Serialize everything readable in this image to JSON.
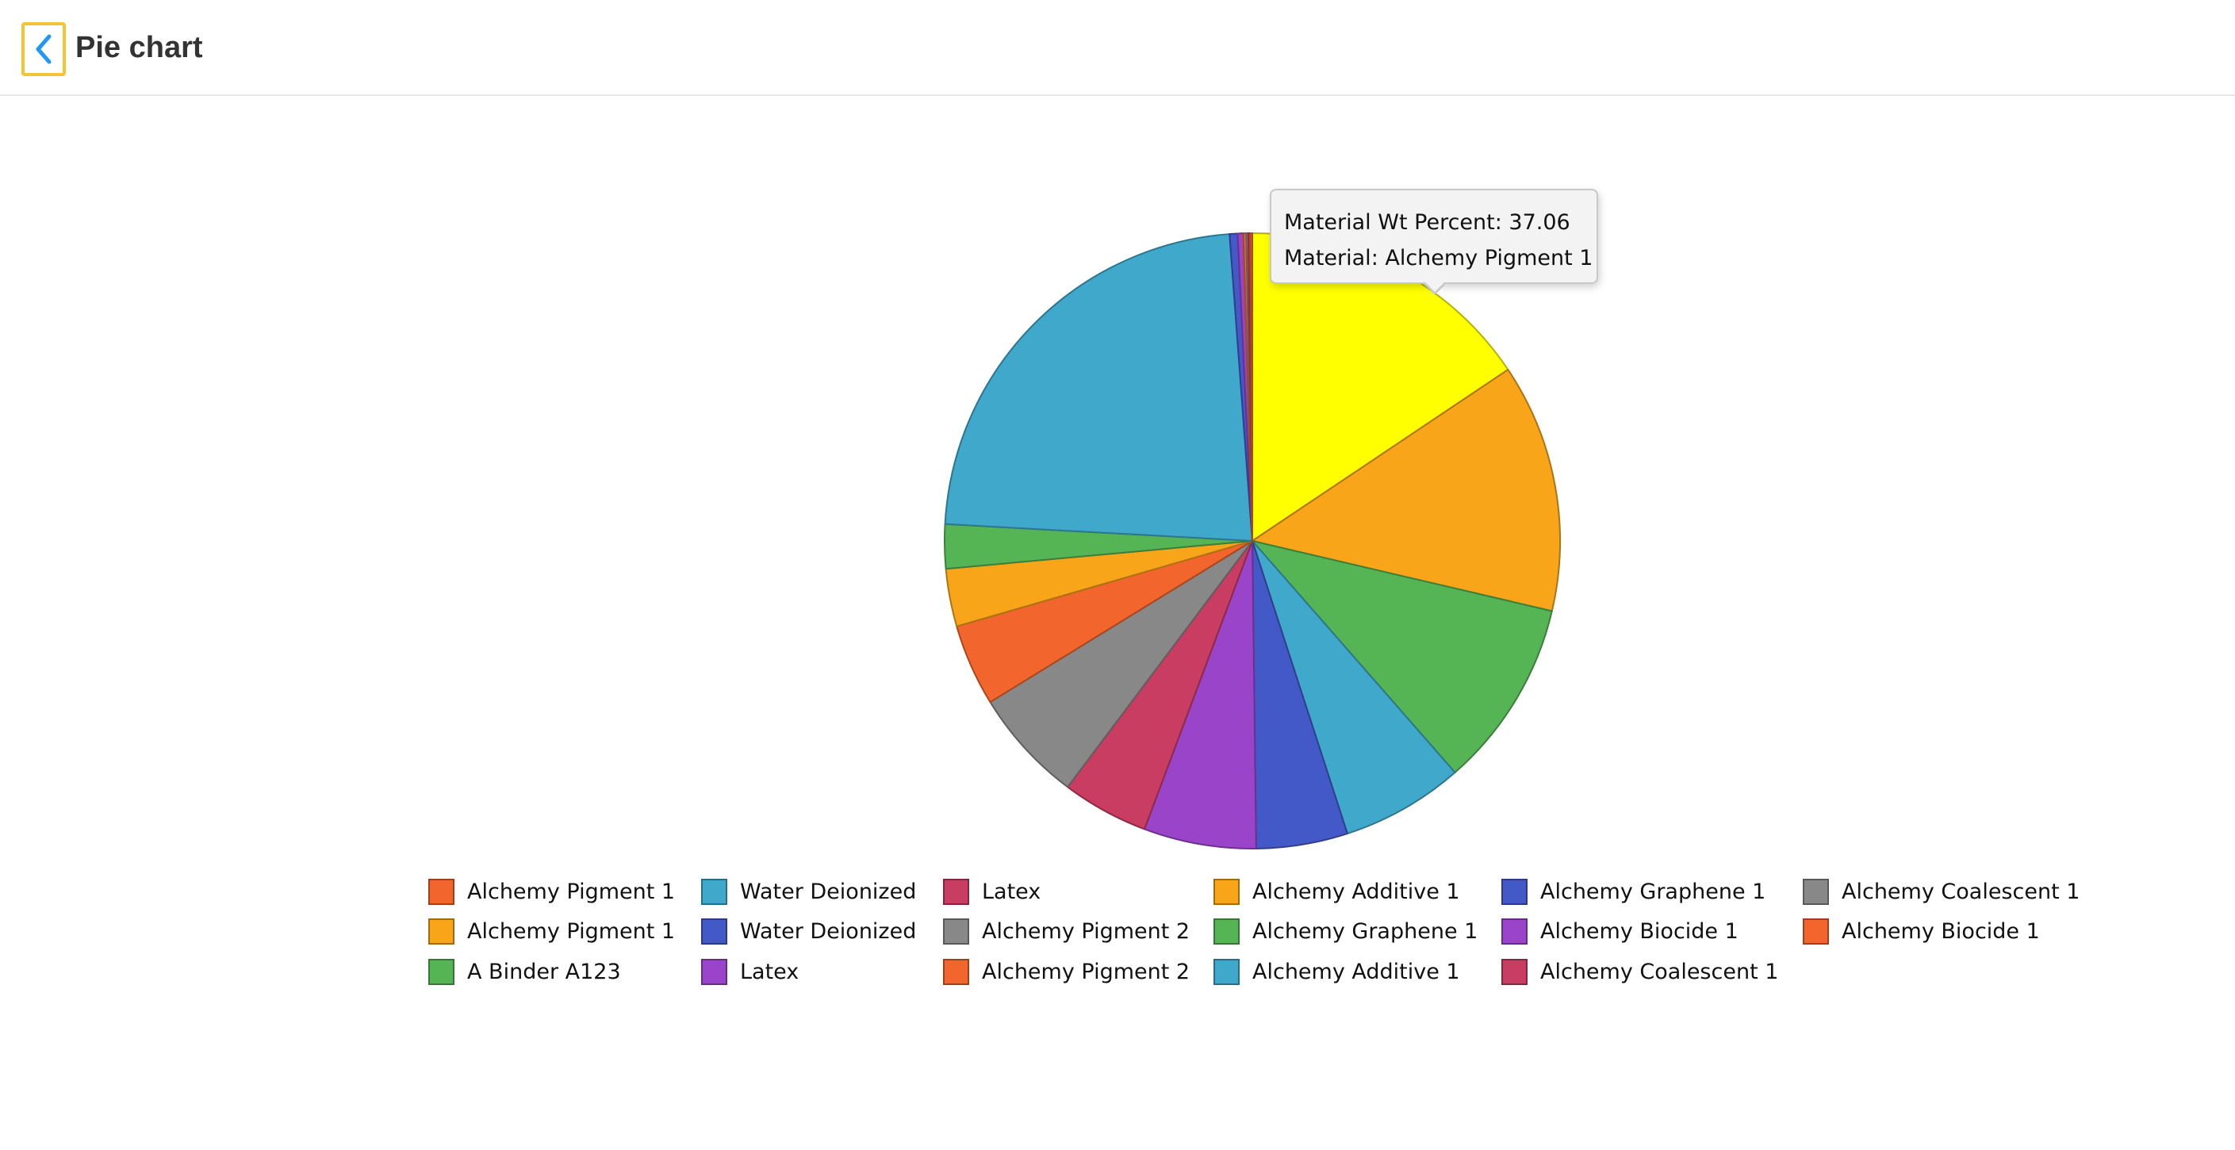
{
  "header": {
    "back_icon": "chevron-left-icon",
    "title": "Pie chart",
    "accent_color": "#2196f3",
    "focus_color": "#f6c431"
  },
  "tooltip": {
    "line1": "Material Wt Percent: 37.06",
    "line2": "Material: Alchemy Pigment 1"
  },
  "chart_data": {
    "type": "pie",
    "title": "",
    "legend_position": "bottom",
    "slices": [
      {
        "label": "Alchemy Pigment 1",
        "value": 37.06,
        "color": "#ffff00"
      },
      {
        "label": "Alchemy Additive 1",
        "value": 31.0,
        "color": "#f9a51a"
      },
      {
        "label": "Alchemy Graphene 1",
        "value": 23.5,
        "color": "#55b555"
      },
      {
        "label": "Alchemy Additive 1",
        "value": 15.3,
        "color": "#40a8cb"
      },
      {
        "label": "Alchemy Graphene 1",
        "value": 11.4,
        "color": "#4459c8"
      },
      {
        "label": "Alchemy Biocide 1",
        "value": 14.0,
        "color": "#9a44c9"
      },
      {
        "label": "Alchemy Coalescent 1",
        "value": 10.8,
        "color": "#c93d63"
      },
      {
        "label": "Alchemy Coalescent 1",
        "value": 14.2,
        "color": "#888888"
      },
      {
        "label": "Alchemy Biocide 1",
        "value": 10.2,
        "color": "#f2652c"
      },
      {
        "label": "Alchemy Pigment 1",
        "value": 7.2,
        "color": "#f9a51a"
      },
      {
        "label": "A Binder A123",
        "value": 5.5,
        "color": "#55b555"
      },
      {
        "label": "Water Deionized",
        "value": 54.5,
        "color": "#40a8cb"
      },
      {
        "label": "Water Deionized",
        "value": 1.0,
        "color": "#4459c8"
      },
      {
        "label": "Latex",
        "value": 0.7,
        "color": "#9a44c9"
      },
      {
        "label": "Alchemy Pigment 2",
        "value": 0.35,
        "color": "#f2652c"
      },
      {
        "label": "Alchemy Pigment 2",
        "value": 0.25,
        "color": "#888888"
      },
      {
        "label": "Latex",
        "value": 0.25,
        "color": "#c93d63"
      },
      {
        "label": "Alchemy Pigment 1",
        "value": 0.25,
        "color": "#f2652c"
      }
    ],
    "legend": [
      [
        {
          "label": "Alchemy Pigment 1",
          "color": "#f2652c"
        },
        {
          "label": "Alchemy Pigment 1",
          "color": "#f9a51a"
        },
        {
          "label": "A Binder A123",
          "color": "#55b555"
        }
      ],
      [
        {
          "label": "Water Deionized",
          "color": "#40a8cb"
        },
        {
          "label": "Water Deionized",
          "color": "#4459c8"
        },
        {
          "label": "Latex",
          "color": "#9a44c9"
        }
      ],
      [
        {
          "label": "Latex",
          "color": "#c93d63"
        },
        {
          "label": "Alchemy Pigment 2",
          "color": "#888888"
        },
        {
          "label": "Alchemy Pigment 2",
          "color": "#f2652c"
        }
      ],
      [
        {
          "label": "Alchemy Additive 1",
          "color": "#f9a51a"
        },
        {
          "label": "Alchemy Graphene 1",
          "color": "#55b555"
        },
        {
          "label": "Alchemy Additive 1",
          "color": "#40a8cb"
        }
      ],
      [
        {
          "label": "Alchemy Graphene 1",
          "color": "#4459c8"
        },
        {
          "label": "Alchemy Biocide 1",
          "color": "#9a44c9"
        },
        {
          "label": "Alchemy Coalescent 1",
          "color": "#c93d63"
        }
      ],
      [
        {
          "label": "Alchemy Coalescent 1",
          "color": "#888888"
        },
        {
          "label": "Alchemy Biocide 1",
          "color": "#f2652c"
        }
      ]
    ]
  }
}
